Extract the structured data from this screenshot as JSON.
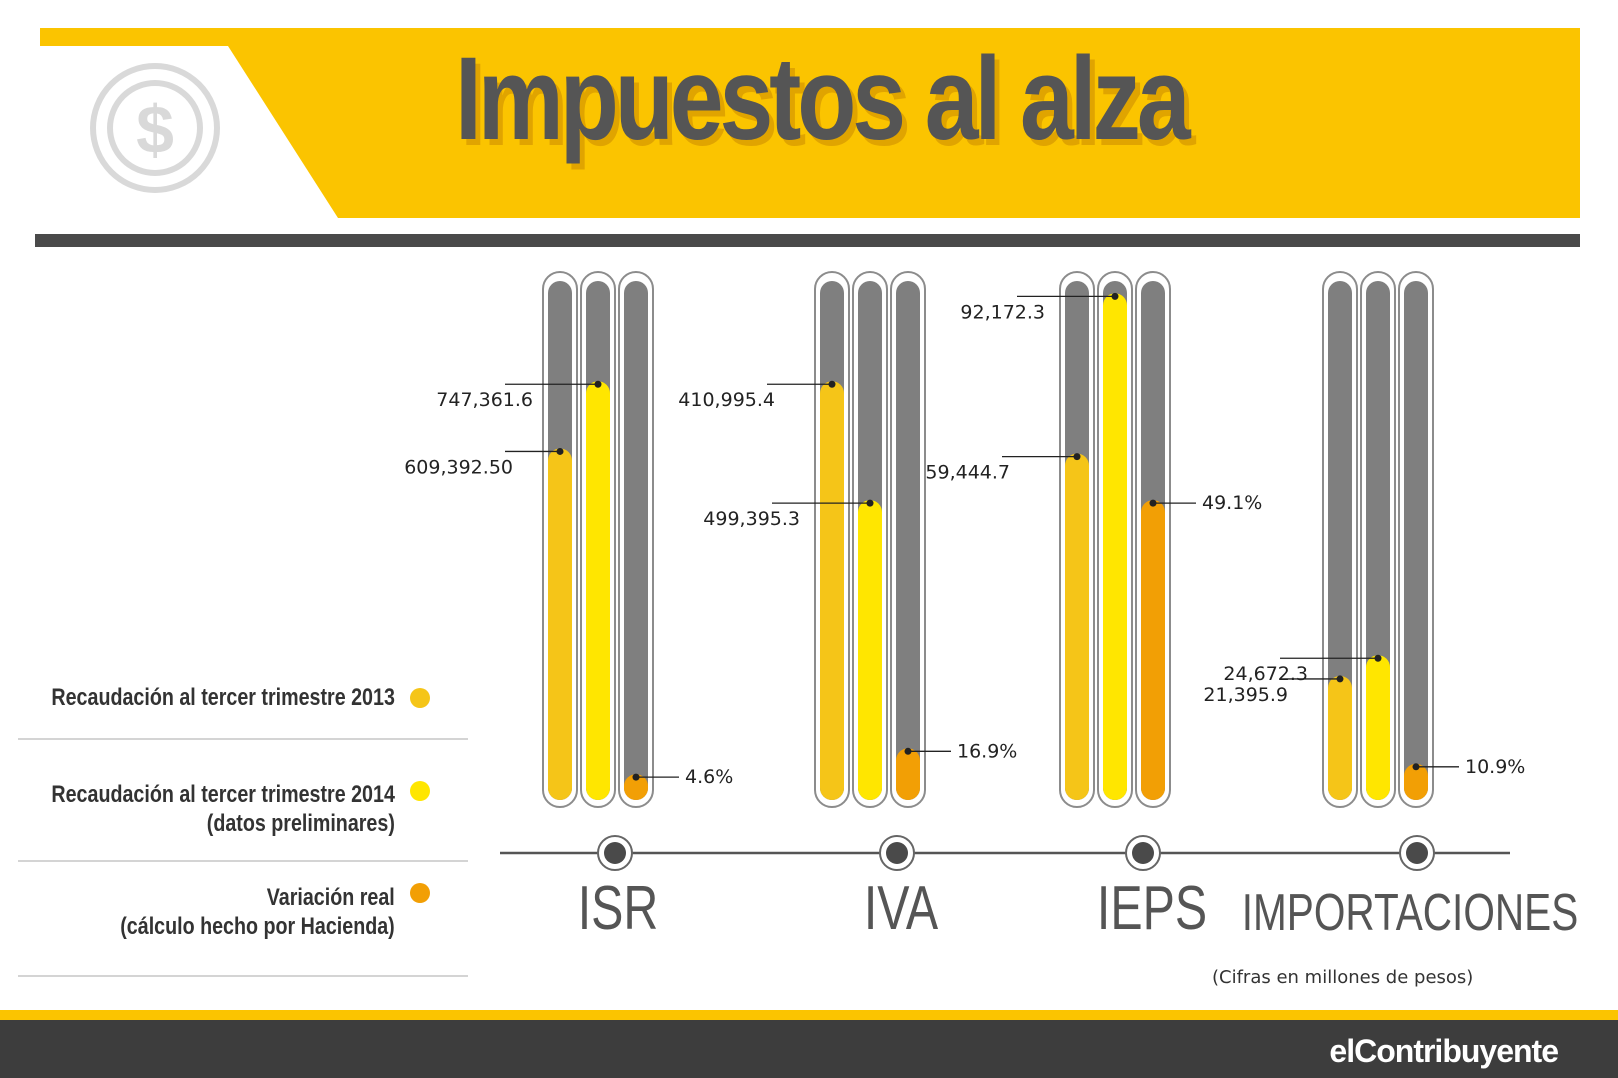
{
  "title": "Impuestos al alza",
  "units_note": "(Cifras en millones de pesos)",
  "brand": "elContribuyente",
  "colors": {
    "header_yellow": "#fbc400",
    "dark_bar": "#4a4a4a",
    "tube_track": "#7f7f7f",
    "series_2013": "#f5c518",
    "series_2014": "#ffe600",
    "series_variation": "#f29f05"
  },
  "icons": {
    "header": "dollar-coin-icon",
    "axis_markers": "circle-marker-icon"
  },
  "legend": [
    {
      "lines": [
        "Recaudación al tercer trimestre 2013"
      ],
      "color": "#f5c518"
    },
    {
      "lines": [
        "Recaudación al tercer trimestre 2014",
        "(datos preliminares)"
      ],
      "color": "#ffe600"
    },
    {
      "lines": [
        "Variación real",
        "(cálculo hecho por Hacienda)"
      ],
      "color": "#f29f05"
    }
  ],
  "chart_data": {
    "type": "bar",
    "categories": [
      "ISR",
      "IVA",
      "IEPS",
      "IMPORTACIONES"
    ],
    "series": [
      {
        "name": "Recaudación al tercer trimestre 2013",
        "values": [
          609392.5,
          410995.4,
          59444.7,
          21395.9
        ],
        "labels": [
          "609,392.50",
          "410,995.4",
          "59,444.7",
          "21,395.9"
        ]
      },
      {
        "name": "Recaudación al tercer trimestre 2014 (datos preliminares)",
        "values": [
          747361.6,
          499395.3,
          92172.3,
          24672.3
        ],
        "labels": [
          "747,361.6",
          "499,395.3",
          "92,172.3",
          "24,672.3"
        ]
      },
      {
        "name": "Variación real (cálculo hecho por Hacienda)",
        "values": [
          4.6,
          16.9,
          49.1,
          10.9
        ],
        "unit": "%",
        "labels": [
          "4.6%",
          "16.9%",
          "49.1%",
          "10.9%"
        ]
      }
    ],
    "fill_fraction": [
      [
        0.68,
        0.81,
        0.67,
        0.24
      ],
      [
        0.81,
        0.58,
        0.98,
        0.28
      ],
      [
        0.05,
        0.1,
        0.58,
        0.07
      ]
    ],
    "grid": false,
    "legend_position": "left"
  }
}
